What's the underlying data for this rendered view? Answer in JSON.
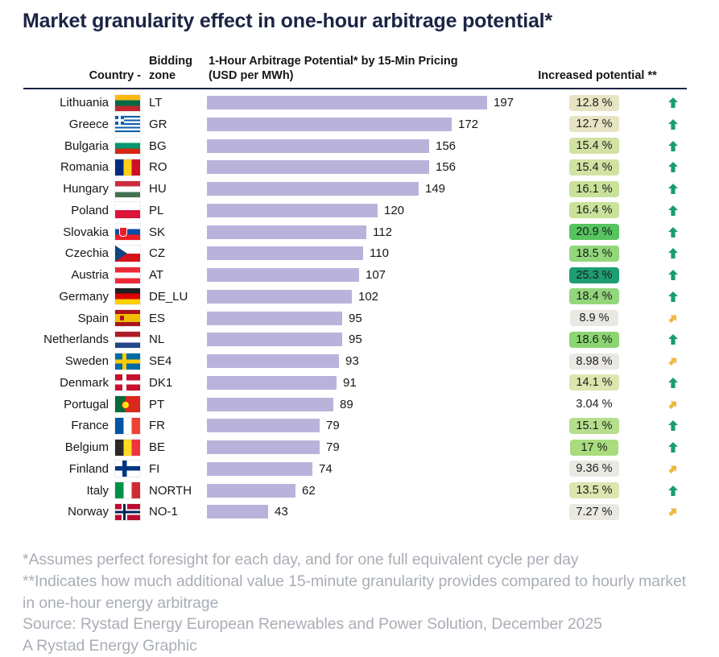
{
  "title": "Market granularity effect in one-hour arbitrage potential*",
  "header": {
    "country": "Country -",
    "zone": "Bidding zone",
    "potential_line1": "1-Hour Arbitrage Potential* by 15-Min Pricing",
    "potential_line2": "(USD per MWh)",
    "increased": "Increased potential **"
  },
  "colors": {
    "bar": "#b9b3dc",
    "up_arrow": "#199c76",
    "diag_arrow": "#efb93f",
    "title": "#1b2444",
    "footnote": "#a9aeb6"
  },
  "chart_data": {
    "type": "bar",
    "orientation": "horizontal",
    "title": "Market granularity effect in one-hour arbitrage potential*",
    "value_axis_label": "1-Hour Arbitrage Potential* by 15-Min Pricing (USD per MWh)",
    "xlim": [
      0,
      197
    ],
    "bar_color": "#b9b3dc",
    "rows": [
      {
        "country": "Lithuania",
        "code": "lt",
        "zone": "LT",
        "value": 197,
        "increase": "12.8 %",
        "badge_color": "#e6e4c3",
        "trend": "up"
      },
      {
        "country": "Greece",
        "code": "gr",
        "zone": "GR",
        "value": 172,
        "increase": "12.7 %",
        "badge_color": "#e6e4c3",
        "trend": "up"
      },
      {
        "country": "Bulgaria",
        "code": "bg",
        "zone": "BG",
        "value": 156,
        "increase": "15.4 %",
        "badge_color": "#d2e2a3",
        "trend": "up"
      },
      {
        "country": "Romania",
        "code": "ro",
        "zone": "RO",
        "value": 156,
        "increase": "15.4 %",
        "badge_color": "#d2e2a3",
        "trend": "up"
      },
      {
        "country": "Hungary",
        "code": "hu",
        "zone": "HU",
        "value": 149,
        "increase": "16.1 %",
        "badge_color": "#c8e29a",
        "trend": "up"
      },
      {
        "country": "Poland",
        "code": "pl",
        "zone": "PL",
        "value": 120,
        "increase": "16.4 %",
        "badge_color": "#c8e29a",
        "trend": "up"
      },
      {
        "country": "Slovakia",
        "code": "sk",
        "zone": "SK",
        "value": 112,
        "increase": "20.9 %",
        "badge_color": "#56c45f",
        "trend": "up"
      },
      {
        "country": "Czechia",
        "code": "cz",
        "zone": "CZ",
        "value": 110,
        "increase": "18.5 %",
        "badge_color": "#93d77c",
        "trend": "up"
      },
      {
        "country": "Austria",
        "code": "at",
        "zone": "AT",
        "value": 107,
        "increase": "25.3 %",
        "badge_color": "#1e9d74",
        "trend": "up"
      },
      {
        "country": "Germany",
        "code": "de",
        "zone": "DE_LU",
        "value": 102,
        "increase": "18.4 %",
        "badge_color": "#93d77c",
        "trend": "up"
      },
      {
        "country": "Spain",
        "code": "es",
        "zone": "ES",
        "value": 95,
        "increase": "8.9 %",
        "badge_color": "#eae8e2",
        "trend": "diag"
      },
      {
        "country": "Netherlands",
        "code": "nl",
        "zone": "NL",
        "value": 95,
        "increase": "18.6 %",
        "badge_color": "#8bd573",
        "trend": "up"
      },
      {
        "country": "Sweden",
        "code": "se",
        "zone": "SE4",
        "value": 93,
        "increase": "8.98 %",
        "badge_color": "#eae8e2",
        "trend": "diag"
      },
      {
        "country": "Denmark",
        "code": "dk",
        "zone": "DK1",
        "value": 91,
        "increase": "14.1 %",
        "badge_color": "#dce7b0",
        "trend": "up"
      },
      {
        "country": "Portugal",
        "code": "pt",
        "zone": "PT",
        "value": 89,
        "increase": "3.04 %",
        "badge_color": "#ffffff",
        "trend": "diag"
      },
      {
        "country": "France",
        "code": "fr",
        "zone": "FR",
        "value": 79,
        "increase": "15.1 %",
        "badge_color": "#b6df8d",
        "trend": "up"
      },
      {
        "country": "Belgium",
        "code": "be",
        "zone": "BE",
        "value": 79,
        "increase": "17 %",
        "badge_color": "#a8dc7d",
        "trend": "up"
      },
      {
        "country": "Finland",
        "code": "fi",
        "zone": "FI",
        "value": 74,
        "increase": "9.36 %",
        "badge_color": "#eae8e2",
        "trend": "diag"
      },
      {
        "country": "Italy",
        "code": "it",
        "zone": "NORTH",
        "value": 62,
        "increase": "13.5 %",
        "badge_color": "#dce7b0",
        "trend": "up"
      },
      {
        "country": "Norway",
        "code": "no",
        "zone": "NO-1",
        "value": 43,
        "increase": "7.27 %",
        "badge_color": "#eae8e2",
        "trend": "diag"
      }
    ]
  },
  "footnotes": [
    "*Assumes perfect foresight for each day, and for one full equivalent cycle per day",
    "**Indicates how much additional value 15-minute granularity provides compared to hourly market in one-hour energy arbitrage",
    "Source: Rystad Energy European Renewables and Power Solution, December 2025",
    "A Rystad Energy Graphic"
  ]
}
